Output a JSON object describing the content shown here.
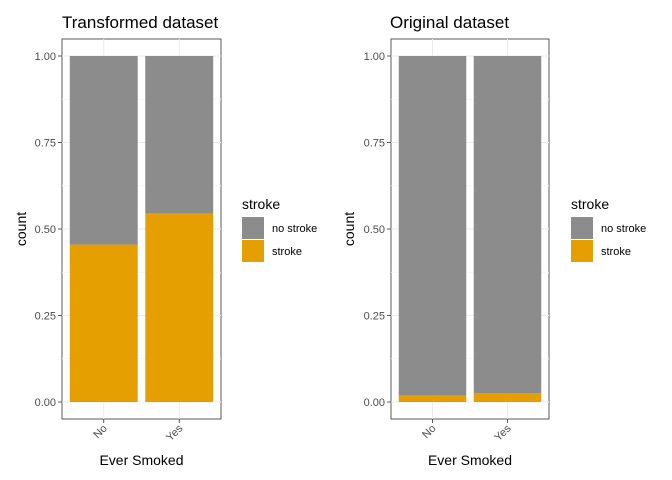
{
  "chart_data": [
    {
      "type": "bar",
      "stacked": true,
      "title": "Transformed dataset",
      "xlabel": "Ever Smoked",
      "ylabel": "count",
      "categories": [
        "No",
        "Yes"
      ],
      "ylim": [
        0,
        1
      ],
      "yticks": [
        "0.00",
        "0.25",
        "0.50",
        "0.75",
        "1.00"
      ],
      "yticks_values": [
        0,
        0.25,
        0.5,
        0.75,
        1.0
      ],
      "grid": true,
      "legend_position": "right",
      "legend_title": "stroke",
      "series": [
        {
          "name": "stroke",
          "color": "#E69F00",
          "values": [
            0.455,
            0.545
          ]
        },
        {
          "name": "no stroke",
          "color": "#8C8C8C",
          "values": [
            0.545,
            0.455
          ]
        }
      ]
    },
    {
      "type": "bar",
      "stacked": true,
      "title": "Original dataset",
      "xlabel": "Ever Smoked",
      "ylabel": "count",
      "categories": [
        "No",
        "Yes"
      ],
      "ylim": [
        0,
        1
      ],
      "yticks": [
        "0.00",
        "0.25",
        "0.50",
        "0.75",
        "1.00"
      ],
      "yticks_values": [
        0,
        0.25,
        0.5,
        0.75,
        1.0
      ],
      "grid": true,
      "legend_position": "right",
      "legend_title": "stroke",
      "series": [
        {
          "name": "stroke",
          "color": "#E69F00",
          "values": [
            0.018,
            0.025
          ]
        },
        {
          "name": "no stroke",
          "color": "#8C8C8C",
          "values": [
            0.982,
            0.975
          ]
        }
      ]
    }
  ]
}
